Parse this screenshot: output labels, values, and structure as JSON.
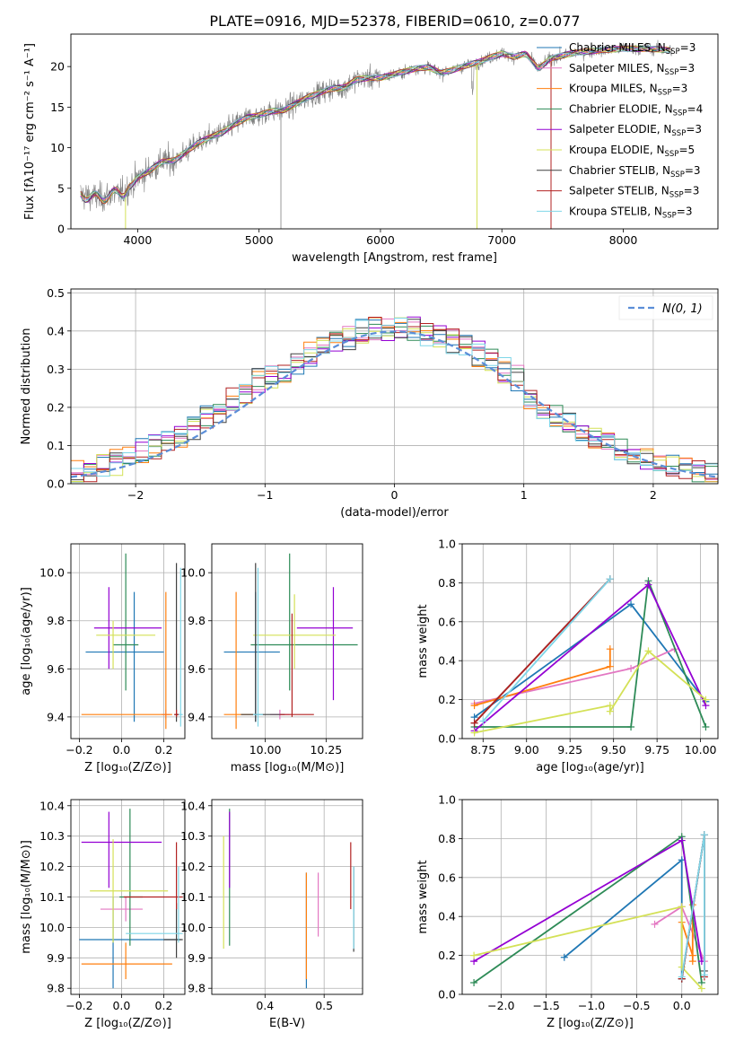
{
  "figure_title": "PLATE=0916, MJD=52378, FIBERID=0610, z=0.077",
  "colors": {
    "Chabrier MILES": "#1f77b4",
    "Salpeter MILES": "#e377c2",
    "Kroupa MILES": "#ff7f0e",
    "Chabrier ELODIE": "#2e8b57",
    "Salpeter ELODIE": "#9400d3",
    "Kroupa ELODIE": "#d4e157",
    "Chabrier STELIB": "#404040",
    "Salpeter STELIB": "#b22222",
    "Kroupa STELIB": "#7fd6e8",
    "data": "#808080",
    "normal": "#5b8ed8"
  },
  "chart_data": [
    {
      "id": "spectrum",
      "type": "line",
      "title": "PLATE=0916, MJD=52378, FIBERID=0610, z=0.077",
      "xlabel": "wavelength [Angstrom, rest frame]",
      "ylabel": "Flux [fλ10⁻¹⁷ erg cm⁻² s⁻¹ A⁻¹]",
      "xlim": [
        3450,
        8780
      ],
      "ylim": [
        0,
        24
      ],
      "xticks": [
        4000,
        5000,
        6000,
        7000,
        8000
      ],
      "yticks": [
        0,
        5,
        10,
        15,
        20
      ],
      "legend_position": "top-right",
      "legend": [
        {
          "model": "Chabrier MILES",
          "n": "3"
        },
        {
          "model": "Salpeter MILES",
          "n": "3"
        },
        {
          "model": "Kroupa MILES",
          "n": "3"
        },
        {
          "model": "Chabrier ELODIE",
          "n": "4"
        },
        {
          "model": "Salpeter ELODIE",
          "n": "3"
        },
        {
          "model": "Kroupa ELODIE",
          "n": "5"
        },
        {
          "model": "Chabrier STELIB",
          "n": "3"
        },
        {
          "model": "Salpeter STELIB",
          "n": "3"
        },
        {
          "model": "Kroupa STELIB",
          "n": "3"
        }
      ],
      "continuum": [
        [
          3530,
          4.2
        ],
        [
          3600,
          4.0
        ],
        [
          3700,
          3.8
        ],
        [
          3800,
          4.3
        ],
        [
          3880,
          4.4
        ],
        [
          3950,
          5.4
        ],
        [
          4000,
          6.3
        ],
        [
          4100,
          7.2
        ],
        [
          4200,
          8.3
        ],
        [
          4300,
          8.4
        ],
        [
          4400,
          9.5
        ],
        [
          4500,
          10.6
        ],
        [
          4600,
          11.3
        ],
        [
          4700,
          11.9
        ],
        [
          4800,
          12.9
        ],
        [
          4900,
          13.7
        ],
        [
          5000,
          14.0
        ],
        [
          5100,
          14.5
        ],
        [
          5200,
          14.6
        ],
        [
          5300,
          15.4
        ],
        [
          5400,
          16.2
        ],
        [
          5500,
          16.8
        ],
        [
          5600,
          17.3
        ],
        [
          5700,
          17.4
        ],
        [
          5800,
          18.4
        ],
        [
          5900,
          18.6
        ],
        [
          6000,
          18.6
        ],
        [
          6100,
          19.0
        ],
        [
          6200,
          19.4
        ],
        [
          6300,
          19.8
        ],
        [
          6400,
          19.9
        ],
        [
          6500,
          19.2
        ],
        [
          6600,
          19.6
        ],
        [
          6700,
          20.1
        ],
        [
          6800,
          20.5
        ],
        [
          6900,
          21.1
        ],
        [
          7000,
          21.6
        ],
        [
          7100,
          21.2
        ],
        [
          7200,
          21.6
        ],
        [
          7300,
          19.7
        ],
        [
          7400,
          21.0
        ],
        [
          7600,
          21.7
        ],
        [
          7800,
          22.0
        ],
        [
          8000,
          22.2
        ],
        [
          8200,
          22.2
        ],
        [
          8400,
          22.0
        ]
      ]
    },
    {
      "id": "residuals",
      "type": "histogram",
      "xlabel": "(data-model)/error",
      "ylabel": "Normed distribution",
      "xlim": [
        -2.5,
        2.5
      ],
      "ylim": [
        0,
        0.51
      ],
      "xticks": [
        -2,
        -1,
        0,
        1,
        2
      ],
      "yticks": [
        0.0,
        0.1,
        0.2,
        0.3,
        0.4,
        0.5
      ],
      "bin_width": 0.1,
      "grid": true,
      "legend_position": "top-right",
      "legend_label": "N(0, 1)",
      "reference_curve": "standard normal (dashed)"
    },
    {
      "id": "age-vs-Z",
      "type": "errorbar",
      "xlabel": "Z [log₁₀(Z/Z⊙)]",
      "ylabel": "age  [log₁₀(age/yr)]",
      "xlim": [
        -0.24,
        0.3
      ],
      "ylim": [
        9.31,
        10.12
      ],
      "xticks": [
        -0.2,
        0.0,
        0.2
      ],
      "yticks": [
        9.4,
        9.6,
        9.8,
        10.0
      ],
      "points": [
        {
          "model": "Chabrier MILES",
          "x": 0.06,
          "y": 9.67,
          "xlo": -0.17,
          "xhi": 0.2,
          "ylo": 9.38,
          "yhi": 9.92
        },
        {
          "model": "Salpeter MILES",
          "x": 0.21,
          "y": 9.41,
          "xlo": 0.19,
          "xhi": 0.23,
          "ylo": 9.39,
          "yhi": 9.43
        },
        {
          "model": "Kroupa MILES",
          "x": 0.21,
          "y": 9.41,
          "xlo": -0.19,
          "xhi": 0.24,
          "ylo": 9.35,
          "yhi": 9.92
        },
        {
          "model": "Chabrier ELODIE",
          "x": 0.02,
          "y": 9.7,
          "xlo": -0.04,
          "xhi": 0.08,
          "ylo": 9.51,
          "yhi": 10.08
        },
        {
          "model": "Salpeter ELODIE",
          "x": -0.06,
          "y": 9.77,
          "xlo": -0.13,
          "xhi": 0.19,
          "ylo": 9.6,
          "yhi": 9.94
        },
        {
          "model": "Kroupa ELODIE",
          "x": -0.04,
          "y": 9.74,
          "xlo": -0.12,
          "xhi": 0.16,
          "ylo": 9.6,
          "yhi": 9.8
        },
        {
          "model": "Chabrier STELIB",
          "x": 0.26,
          "y": 9.41,
          "xlo": 0.25,
          "xhi": 0.27,
          "ylo": 9.38,
          "yhi": 10.04
        },
        {
          "model": "Salpeter STELIB",
          "x": 0.26,
          "y": 9.41,
          "xlo": 0.25,
          "xhi": 0.27,
          "ylo": 9.4,
          "yhi": 9.43
        },
        {
          "model": "Kroupa STELIB",
          "x": 0.28,
          "y": 9.41,
          "xlo": 0.27,
          "xhi": 0.29,
          "ylo": 9.36,
          "yhi": 10.02
        }
      ]
    },
    {
      "id": "age-vs-mass",
      "type": "errorbar",
      "xlabel": "mass [log₁₀(M/M⊙)]",
      "ylabel": "",
      "xlim": [
        9.78,
        10.4
      ],
      "ylim": [
        9.31,
        10.12
      ],
      "xticks": [
        10.0,
        10.25
      ],
      "yticks": [
        9.4,
        9.6,
        9.8,
        10.0
      ],
      "points": [
        {
          "model": "Chabrier MILES",
          "x": 9.96,
          "y": 9.67,
          "xlo": 9.83,
          "xhi": 10.06,
          "ylo": 9.38,
          "yhi": 9.92
        },
        {
          "model": "Salpeter MILES",
          "x": 10.06,
          "y": 9.41,
          "xlo": 10.02,
          "xhi": 10.1,
          "ylo": 9.39,
          "yhi": 9.43
        },
        {
          "model": "Kroupa MILES",
          "x": 9.88,
          "y": 9.41,
          "xlo": 9.83,
          "xhi": 9.95,
          "ylo": 9.35,
          "yhi": 9.92
        },
        {
          "model": "Chabrier ELODIE",
          "x": 10.1,
          "y": 9.7,
          "xlo": 9.94,
          "xhi": 10.38,
          "ylo": 9.51,
          "yhi": 10.08
        },
        {
          "model": "Salpeter ELODIE",
          "x": 10.28,
          "y": 9.77,
          "xlo": 10.13,
          "xhi": 10.36,
          "ylo": 9.47,
          "yhi": 9.94
        },
        {
          "model": "Kroupa ELODIE",
          "x": 10.12,
          "y": 9.74,
          "xlo": 9.95,
          "xhi": 10.29,
          "ylo": 9.6,
          "yhi": 9.91
        },
        {
          "model": "Chabrier STELIB",
          "x": 9.96,
          "y": 9.41,
          "xlo": 9.9,
          "xhi": 10.08,
          "ylo": 9.38,
          "yhi": 10.04
        },
        {
          "model": "Salpeter STELIB",
          "x": 10.11,
          "y": 9.41,
          "xlo": 10.06,
          "xhi": 10.2,
          "ylo": 9.4,
          "yhi": 9.83
        },
        {
          "model": "Kroupa STELIB",
          "x": 9.97,
          "y": 9.41,
          "xlo": 9.95,
          "xhi": 9.99,
          "ylo": 9.36,
          "yhi": 10.02
        }
      ]
    },
    {
      "id": "weight-vs-age",
      "type": "line",
      "xlabel": "age  [log₁₀(age/yr)]",
      "ylabel": "mass weight",
      "xlim": [
        8.63,
        10.1
      ],
      "ylim": [
        0,
        1.0
      ],
      "xticks": [
        8.75,
        9.0,
        9.25,
        9.5,
        9.75,
        10.0
      ],
      "yticks": [
        0.0,
        0.2,
        0.4,
        0.6,
        0.8,
        1.0
      ],
      "series": [
        {
          "model": "Chabrier MILES",
          "points": [
            [
              8.7,
              0.11
            ],
            [
              9.6,
              0.69
            ],
            [
              10.03,
              0.19
            ]
          ]
        },
        {
          "model": "Salpeter MILES",
          "points": [
            [
              8.7,
              0.18
            ],
            [
              9.6,
              0.36
            ],
            [
              9.85,
              0.46
            ]
          ]
        },
        {
          "model": "Kroupa MILES",
          "points": [
            [
              8.7,
              0.17
            ],
            [
              9.48,
              0.37
            ],
            [
              9.48,
              0.46
            ]
          ]
        },
        {
          "model": "Chabrier ELODIE",
          "points": [
            [
              8.7,
              0.06
            ],
            [
              9.6,
              0.06
            ],
            [
              9.7,
              0.81
            ],
            [
              10.03,
              0.06
            ]
          ]
        },
        {
          "model": "Salpeter ELODIE",
          "points": [
            [
              8.7,
              0.04
            ],
            [
              9.7,
              0.79
            ],
            [
              10.03,
              0.17
            ]
          ]
        },
        {
          "model": "Kroupa ELODIE",
          "points": [
            [
              8.7,
              0.03
            ],
            [
              9.48,
              0.17
            ],
            [
              9.48,
              0.14
            ],
            [
              9.7,
              0.45
            ],
            [
              10.03,
              0.2
            ]
          ]
        },
        {
          "model": "Chabrier STELIB",
          "points": [
            [
              8.7,
              0.08
            ],
            [
              9.48,
              0.82
            ]
          ]
        },
        {
          "model": "Salpeter STELIB",
          "points": [
            [
              8.7,
              0.08
            ],
            [
              9.48,
              0.82
            ]
          ]
        },
        {
          "model": "Kroupa STELIB",
          "points": [
            [
              8.75,
              0.09
            ],
            [
              9.48,
              0.82
            ]
          ]
        }
      ]
    },
    {
      "id": "mass-vs-Z",
      "type": "errorbar",
      "xlabel": "Z [log₁₀(Z/Z⊙)]",
      "ylabel": "mass [log₁₀(M/M⊙)]",
      "xlim": [
        -0.24,
        0.3
      ],
      "ylim": [
        9.78,
        10.42
      ],
      "xticks": [
        -0.2,
        0.0,
        0.2
      ],
      "yticks": [
        9.8,
        9.9,
        10.0,
        10.1,
        10.2,
        10.3,
        10.4
      ],
      "points": [
        {
          "model": "Chabrier MILES",
          "x": -0.04,
          "y": 9.96,
          "xlo": -0.2,
          "xhi": 0.28,
          "ylo": 9.8,
          "yhi": 10.1
        },
        {
          "model": "Salpeter MILES",
          "x": 0.02,
          "y": 10.06,
          "xlo": -0.1,
          "xhi": 0.1,
          "ylo": 10.02,
          "yhi": 10.1
        },
        {
          "model": "Kroupa MILES",
          "x": 0.02,
          "y": 9.88,
          "xlo": -0.19,
          "xhi": 0.24,
          "ylo": 9.83,
          "yhi": 9.95
        },
        {
          "model": "Chabrier ELODIE",
          "x": 0.04,
          "y": 10.1,
          "xlo": -0.01,
          "xhi": 0.1,
          "ylo": 9.94,
          "yhi": 10.39
        },
        {
          "model": "Salpeter ELODIE",
          "x": -0.06,
          "y": 10.28,
          "xlo": -0.19,
          "xhi": 0.19,
          "ylo": 10.13,
          "yhi": 10.38
        },
        {
          "model": "Kroupa ELODIE",
          "x": -0.04,
          "y": 10.12,
          "xlo": -0.15,
          "xhi": 0.22,
          "ylo": 9.95,
          "yhi": 10.29
        },
        {
          "model": "Chabrier STELIB",
          "x": 0.26,
          "y": 9.96,
          "xlo": 0.2,
          "xhi": 0.29,
          "ylo": 9.9,
          "yhi": 10.08
        },
        {
          "model": "Salpeter STELIB",
          "x": 0.26,
          "y": 10.1,
          "xlo": 0.01,
          "xhi": 0.29,
          "ylo": 10.06,
          "yhi": 10.28
        },
        {
          "model": "Kroupa STELIB",
          "x": 0.27,
          "y": 9.98,
          "xlo": 0.02,
          "xhi": 0.29,
          "ylo": 9.95,
          "yhi": 10.2
        }
      ]
    },
    {
      "id": "mass-vs-ebv",
      "type": "errorbar",
      "xlabel": "E(B-V)",
      "ylabel": "",
      "xlim": [
        0.31,
        0.565
      ],
      "ylim": [
        9.78,
        10.42
      ],
      "xticks": [
        0.4,
        0.5
      ],
      "yticks": [
        9.8,
        9.9,
        10.0,
        10.1,
        10.2,
        10.3,
        10.4
      ],
      "points": [
        {
          "model": "Chabrier MILES",
          "x": 0.47,
          "y": 9.96,
          "ylo": 9.8,
          "yhi": 10.18
        },
        {
          "model": "Salpeter MILES",
          "x": 0.49,
          "y": 10.06,
          "ylo": 9.97,
          "yhi": 10.18
        },
        {
          "model": "Kroupa MILES",
          "x": 0.47,
          "y": 9.88,
          "ylo": 9.83,
          "yhi": 10.18
        },
        {
          "model": "Chabrier ELODIE",
          "x": 0.34,
          "y": 10.1,
          "ylo": 9.94,
          "yhi": 10.39
        },
        {
          "model": "Salpeter ELODIE",
          "x": 0.34,
          "y": 10.28,
          "ylo": 10.13,
          "yhi": 10.38
        },
        {
          "model": "Kroupa ELODIE",
          "x": 0.33,
          "y": 10.12,
          "ylo": 9.93,
          "yhi": 10.3
        },
        {
          "model": "Chabrier STELIB",
          "x": 0.55,
          "y": 9.96,
          "ylo": 9.92,
          "yhi": 10.2
        },
        {
          "model": "Salpeter STELIB",
          "x": 0.545,
          "y": 10.1,
          "ylo": 10.06,
          "yhi": 10.28
        },
        {
          "model": "Kroupa STELIB",
          "x": 0.55,
          "y": 9.98,
          "ylo": 9.93,
          "yhi": 10.2
        }
      ]
    },
    {
      "id": "weight-vs-Z",
      "type": "line",
      "xlabel": "Z [log₁₀(Z/Z⊙)]",
      "ylabel": "mass weight",
      "xlim": [
        -2.43,
        0.4
      ],
      "ylim": [
        0,
        1.0
      ],
      "xticks": [
        -2.0,
        -1.5,
        -1.0,
        -0.5,
        0.0
      ],
      "yticks": [
        0.0,
        0.2,
        0.4,
        0.6,
        0.8,
        1.0
      ],
      "series": [
        {
          "model": "Chabrier MILES",
          "points": [
            [
              -1.3,
              0.19
            ],
            [
              0.0,
              0.69
            ],
            [
              0.0,
              0.08
            ],
            [
              0.25,
              0.82
            ]
          ]
        },
        {
          "model": "Salpeter MILES",
          "points": [
            [
              -0.3,
              0.36
            ],
            [
              0.0,
              0.45
            ],
            [
              0.25,
              0.17
            ]
          ]
        },
        {
          "model": "Kroupa MILES",
          "points": [
            [
              0.0,
              0.37
            ],
            [
              0.12,
              0.2
            ],
            [
              0.12,
              0.46
            ],
            [
              0.12,
              0.17
            ]
          ]
        },
        {
          "model": "Chabrier ELODIE",
          "points": [
            [
              -2.3,
              0.06
            ],
            [
              0.0,
              0.81
            ],
            [
              0.22,
              0.06
            ]
          ]
        },
        {
          "model": "Salpeter ELODIE",
          "points": [
            [
              -2.3,
              0.17
            ],
            [
              0.0,
              0.79
            ],
            [
              0.22,
              0.17
            ]
          ]
        },
        {
          "model": "Kroupa ELODIE",
          "points": [
            [
              -2.3,
              0.2
            ],
            [
              0.0,
              0.45
            ],
            [
              0.0,
              0.14
            ],
            [
              0.22,
              0.03
            ]
          ]
        },
        {
          "model": "Chabrier STELIB",
          "points": [
            [
              0.0,
              0.08
            ],
            [
              0.25,
              0.82
            ],
            [
              0.25,
              0.12
            ]
          ]
        },
        {
          "model": "Salpeter STELIB",
          "points": [
            [
              0.0,
              0.08
            ],
            [
              0.25,
              0.82
            ],
            [
              0.25,
              0.09
            ]
          ]
        },
        {
          "model": "Kroupa STELIB",
          "points": [
            [
              0.0,
              0.09
            ],
            [
              0.25,
              0.82
            ],
            [
              0.25,
              0.1
            ]
          ]
        }
      ]
    }
  ]
}
